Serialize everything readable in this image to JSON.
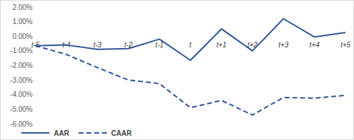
{
  "chart_data": {
    "type": "line",
    "categories": [
      "t-5",
      "t-4",
      "t-3",
      "t-2",
      "t-1",
      "t",
      "t+1",
      "t+2",
      "t+3",
      "t+4",
      "t+5"
    ],
    "series": [
      {
        "name": "AAR",
        "color": "#2f5597",
        "line_style": "solid",
        "values": [
          -0.65,
          -0.6,
          -0.9,
          -0.85,
          -0.2,
          -1.65,
          0.5,
          -1.0,
          1.2,
          -0.05,
          0.25
        ]
      },
      {
        "name": "CAAR",
        "color": "#2f5597",
        "line_style": "dashed",
        "values": [
          -0.65,
          -1.25,
          -2.15,
          -3.0,
          -3.25,
          -4.9,
          -4.4,
          -5.4,
          -4.2,
          -4.25,
          -4.05
        ]
      }
    ],
    "ylim": [
      -6,
      2
    ],
    "yticks": [
      {
        "value": 2,
        "label": "2.00%"
      },
      {
        "value": 1,
        "label": "1.00%"
      },
      {
        "value": 0,
        "label": "0.00%"
      },
      {
        "value": -1,
        "label": "-1.00%"
      },
      {
        "value": -2,
        "label": "-2.00%"
      },
      {
        "value": -3,
        "label": "-3.00%"
      },
      {
        "value": -4,
        "label": "-4.00%"
      },
      {
        "value": -5,
        "label": "-5.00%"
      },
      {
        "value": -6,
        "label": "-6.00%"
      }
    ],
    "grid": false,
    "legend": "lower left"
  }
}
